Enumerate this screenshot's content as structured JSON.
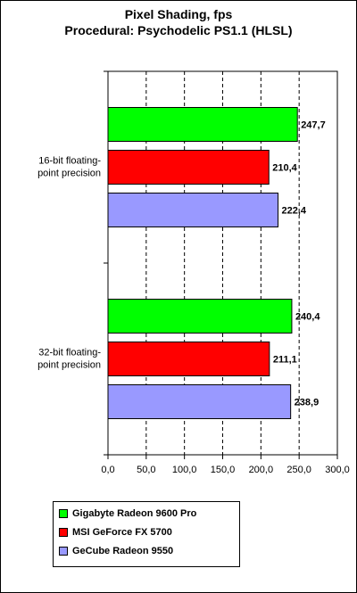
{
  "title_line1": "Pixel Shading, fps",
  "title_line2": "Procedural: Psychodelic PS1.1 (HLSL)",
  "chart_data": {
    "type": "bar",
    "orientation": "horizontal",
    "categories": [
      [
        "16-bit floating-",
        "point precision"
      ],
      [
        "32-bit floating-",
        "point precision"
      ]
    ],
    "series": [
      {
        "name": "Gigabyte Radeon 9600 Pro",
        "color": "#00ff00",
        "values": [
          247.7,
          240.4
        ],
        "labels": [
          "247,7",
          "240,4"
        ]
      },
      {
        "name": "MSI GeForce FX 5700",
        "color": "#ff0000",
        "values": [
          210.4,
          211.1
        ],
        "labels": [
          "210,4",
          "211,1"
        ]
      },
      {
        "name": "GeCube Radeon 9550",
        "color": "#9999ff",
        "values": [
          222.4,
          238.9
        ],
        "labels": [
          "222,4",
          "238,9"
        ]
      }
    ],
    "xlim": [
      0,
      300
    ],
    "xticks": [
      "0,0",
      "50,0",
      "100,0",
      "150,0",
      "200,0",
      "250,0",
      "300,0"
    ],
    "grid": "vertical dashed",
    "legend": "bottom-left"
  }
}
